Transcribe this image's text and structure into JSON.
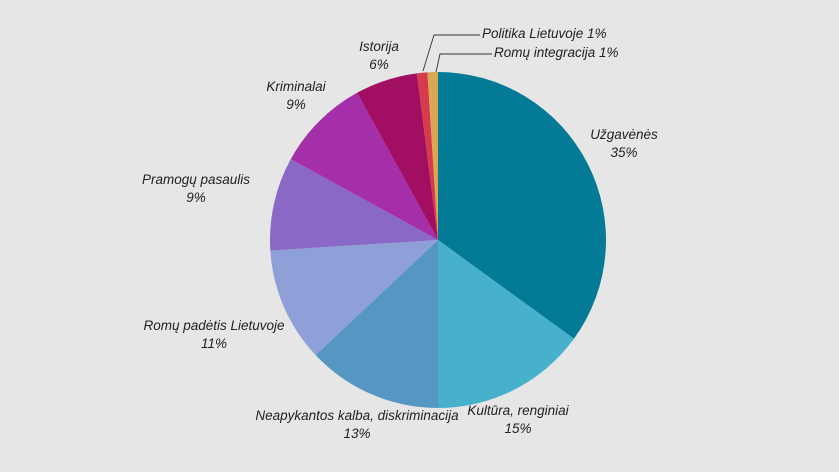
{
  "chart_data": {
    "type": "pie",
    "title": "",
    "start": "12 o'clock",
    "direction": "clockwise",
    "slices": [
      {
        "label": "Užgavėnės",
        "value": 35,
        "pct_label": "35%",
        "color": "#047b96"
      },
      {
        "label": "Kultūra, renginiai",
        "value": 15,
        "pct_label": "15%",
        "color": "#47b1cb"
      },
      {
        "label": "Neapykantos kalba, diskriminacija",
        "value": 13,
        "pct_label": "13%",
        "color": "#5597c2"
      },
      {
        "label": "Romų padėtis Lietuvoje",
        "value": 11,
        "pct_label": "11%",
        "color": "#8f9fd8"
      },
      {
        "label": "Pramogų pasaulis",
        "value": 9,
        "pct_label": "9%",
        "color": "#8968c6"
      },
      {
        "label": "Kriminalai",
        "value": 9,
        "pct_label": "9%",
        "color": "#a52fa9"
      },
      {
        "label": "Istorija",
        "value": 6,
        "pct_label": "6%",
        "color": "#a20e62"
      },
      {
        "label": "Politika Lietuvoje",
        "value": 1,
        "pct_label": "1%",
        "color": "#d63b4c"
      },
      {
        "label": "Romų integracija",
        "value": 1,
        "pct_label": "1%",
        "color": "#d9a851"
      }
    ]
  }
}
